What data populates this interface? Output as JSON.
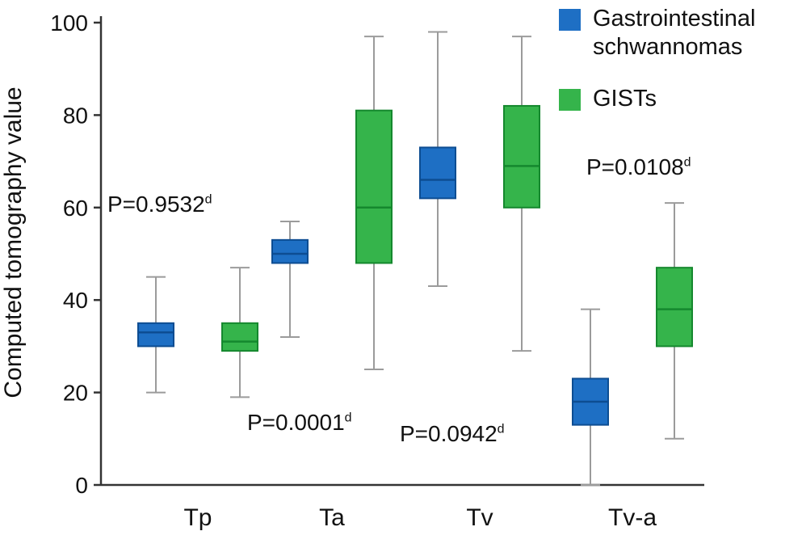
{
  "chart_data": {
    "type": "box",
    "title": "",
    "ylabel": "Computed tomography value",
    "xlabel": "",
    "ylim": [
      0,
      100
    ],
    "yticks": [
      0,
      20,
      40,
      60,
      80,
      100
    ],
    "grid": false,
    "legend_position": "top-right",
    "categories": [
      "Tp",
      "Ta",
      "Tv",
      "Tv-a"
    ],
    "series": [
      {
        "name": "Gastrointestinal schwannomas",
        "color": "#1e6fc4",
        "border": "#0d4d92",
        "boxes": [
          {
            "category": "Tp",
            "min": 20,
            "q1": 30,
            "median": 33,
            "q3": 35,
            "max": 45
          },
          {
            "category": "Ta",
            "min": 32,
            "q1": 48,
            "median": 50,
            "q3": 53,
            "max": 57
          },
          {
            "category": "Tv",
            "min": 43,
            "q1": 62,
            "median": 66,
            "q3": 73,
            "max": 98
          },
          {
            "category": "Tv-a",
            "min": 0,
            "q1": 13,
            "median": 18,
            "q3": 23,
            "max": 38
          }
        ]
      },
      {
        "name": "GISTs",
        "color": "#35b44b",
        "border": "#15882e",
        "boxes": [
          {
            "category": "Tp",
            "min": 19,
            "q1": 29,
            "median": 31,
            "q3": 35,
            "max": 47
          },
          {
            "category": "Ta",
            "min": 25,
            "q1": 48,
            "median": 60,
            "q3": 81,
            "max": 97
          },
          {
            "category": "Tv",
            "min": 29,
            "q1": 60,
            "median": 69,
            "q3": 82,
            "max": 97
          },
          {
            "category": "Tv-a",
            "min": 10,
            "q1": 30,
            "median": 38,
            "q3": 47,
            "max": 61
          }
        ]
      }
    ],
    "annotations": [
      {
        "text": "P=0.9532",
        "sup": "d"
      },
      {
        "text": "P=0.0001",
        "sup": "d"
      },
      {
        "text": "P=0.0942",
        "sup": "d"
      },
      {
        "text": "P=0.0108",
        "sup": "d"
      }
    ],
    "legend": {
      "items": [
        {
          "label_lines": [
            "Gastrointestinal",
            "schwannomas"
          ],
          "color": "#1e6fc4"
        },
        {
          "label_lines": [
            "GISTs"
          ],
          "color": "#35b44b"
        }
      ]
    }
  }
}
